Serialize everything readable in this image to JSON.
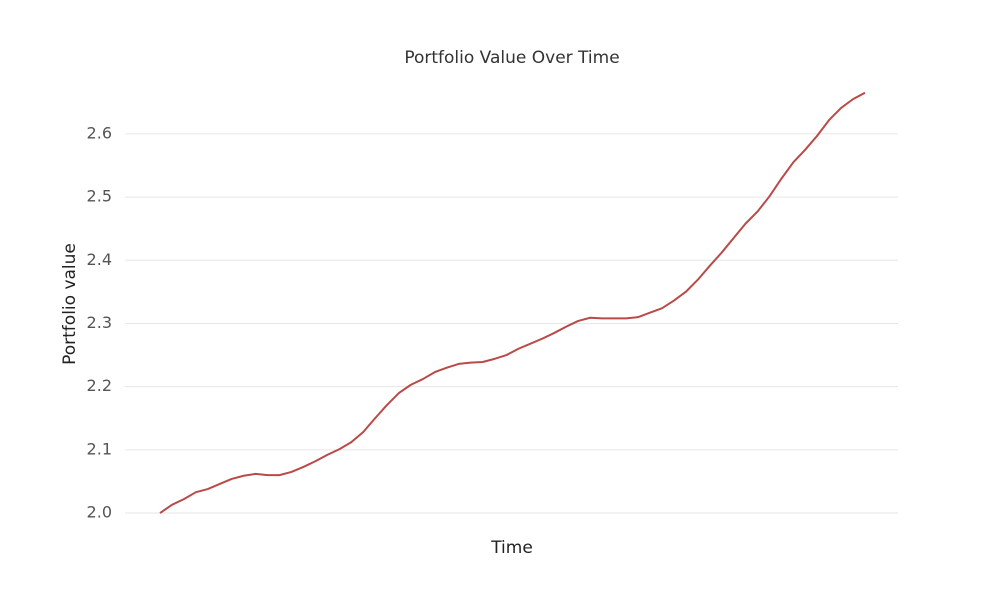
{
  "chart_data": {
    "type": "line",
    "title": "Portfolio Value Over Time",
    "xlabel": "Time",
    "ylabel": "Portfolio value",
    "series": [
      {
        "name": "Portfolio value",
        "color": "#b94a48",
        "values": [
          2.0,
          2.013,
          2.022,
          2.033,
          2.038,
          2.046,
          2.054,
          2.059,
          2.062,
          2.06,
          2.06,
          2.065,
          2.073,
          2.082,
          2.092,
          2.101,
          2.112,
          2.128,
          2.15,
          2.171,
          2.19,
          2.203,
          2.212,
          2.223,
          2.23,
          2.236,
          2.238,
          2.239,
          2.244,
          2.25,
          2.26,
          2.268,
          2.276,
          2.285,
          2.295,
          2.304,
          2.309,
          2.308,
          2.308,
          2.308,
          2.31,
          2.317,
          2.324,
          2.336,
          2.35,
          2.369,
          2.391,
          2.412,
          2.435,
          2.458,
          2.477,
          2.501,
          2.529,
          2.555,
          2.575,
          2.597,
          2.622,
          2.641,
          2.655,
          2.665
        ]
      }
    ],
    "ylim": [
      1.97,
      2.69
    ],
    "yticks": [
      {
        "value": 2.0,
        "label": "2.0"
      },
      2.1,
      2.2,
      2.3,
      2.4,
      2.5,
      2.6
    ],
    "grid": true
  }
}
